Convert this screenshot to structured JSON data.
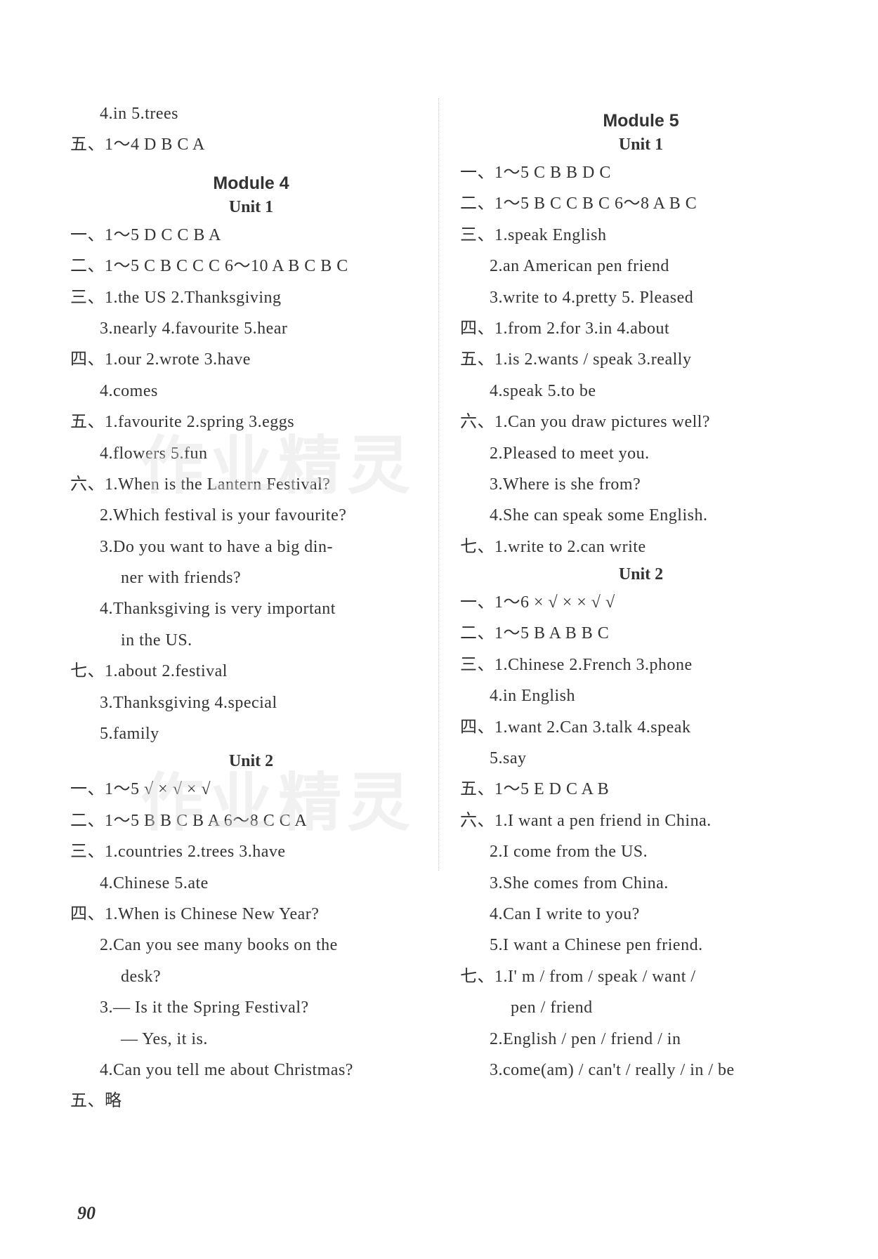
{
  "page_number": "90",
  "watermark_text": "作业精灵",
  "left_column": {
    "intro": [
      {
        "cls": "indent1",
        "text": "4.in  5.trees"
      },
      {
        "cls": "",
        "text": "五、1～4 D B C A"
      }
    ],
    "module_title": "Module 4",
    "unit1_title": "Unit 1",
    "unit1": [
      {
        "cls": "",
        "text": "一、1～5 D C C B A"
      },
      {
        "cls": "",
        "text": "二、1～5 C B C C C  6～10 A B C B C"
      },
      {
        "cls": "",
        "text": "三、1.the US  2.Thanksgiving"
      },
      {
        "cls": "indent1",
        "text": "3.nearly  4.favourite  5.hear"
      },
      {
        "cls": "",
        "text": "四、1.our  2.wrote  3.have"
      },
      {
        "cls": "indent1",
        "text": "4.comes"
      },
      {
        "cls": "",
        "text": "五、1.favourite  2.spring  3.eggs"
      },
      {
        "cls": "indent1",
        "text": "4.flowers  5.fun"
      },
      {
        "cls": "",
        "text": "六、1.When is the Lantern Festival?"
      },
      {
        "cls": "indent1",
        "text": "2.Which festival is your favourite?"
      },
      {
        "cls": "indent1",
        "text": "3.Do you want to have a big din-"
      },
      {
        "cls": "indent2",
        "text": "ner with friends?"
      },
      {
        "cls": "indent1",
        "text": "4.Thanksgiving is very important"
      },
      {
        "cls": "indent2",
        "text": "in the US."
      },
      {
        "cls": "",
        "text": "七、1.about  2.festival"
      },
      {
        "cls": "indent1",
        "text": "3.Thanksgiving  4.special"
      },
      {
        "cls": "indent1",
        "text": "5.family"
      }
    ],
    "unit2_title": "Unit 2",
    "unit2": [
      {
        "cls": "",
        "text": "一、1～5  √  ×  √  ×  √"
      },
      {
        "cls": "",
        "text": "二、1～5 B B C B A  6～8 C C A"
      },
      {
        "cls": "",
        "text": "三、1.countries  2.trees  3.have"
      },
      {
        "cls": "indent1",
        "text": "4.Chinese  5.ate"
      },
      {
        "cls": "",
        "text": "四、1.When is Chinese New Year?"
      },
      {
        "cls": "indent1",
        "text": "2.Can you see many books on the"
      },
      {
        "cls": "indent2",
        "text": "desk?"
      },
      {
        "cls": "indent1",
        "text": "3.— Is it the Spring Festival?"
      },
      {
        "cls": "indent2",
        "text": "— Yes, it is."
      },
      {
        "cls": "indent1",
        "text": "4.Can you tell me about Christmas?"
      },
      {
        "cls": "",
        "text": "五、略"
      }
    ]
  },
  "right_column": {
    "module_title": "Module 5",
    "unit1_title": "Unit 1",
    "unit1": [
      {
        "cls": "",
        "text": "一、1～5 C B B D C"
      },
      {
        "cls": "",
        "text": "二、1～5 B C C B C  6～8 A B C"
      },
      {
        "cls": "",
        "text": "三、1.speak English"
      },
      {
        "cls": "indent1",
        "text": "2.an American pen friend"
      },
      {
        "cls": "indent1",
        "text": "3.write to  4.pretty  5. Pleased"
      },
      {
        "cls": "",
        "text": "四、1.from  2.for  3.in  4.about"
      },
      {
        "cls": "",
        "text": "五、1.is  2.wants / speak  3.really"
      },
      {
        "cls": "indent1",
        "text": "4.speak  5.to be"
      },
      {
        "cls": "",
        "text": "六、1.Can you draw pictures well?"
      },
      {
        "cls": "indent1",
        "text": "2.Pleased to meet you."
      },
      {
        "cls": "indent1",
        "text": "3.Where is she from?"
      },
      {
        "cls": "indent1",
        "text": "4.She can speak some English."
      },
      {
        "cls": "",
        "text": "七、1.write to  2.can write"
      }
    ],
    "unit2_title": "Unit 2",
    "unit2": [
      {
        "cls": "",
        "text": "一、1～6 × √ × × √ √"
      },
      {
        "cls": "",
        "text": "二、1～5 B A B B C"
      },
      {
        "cls": "",
        "text": "三、1.Chinese  2.French  3.phone"
      },
      {
        "cls": "indent1",
        "text": "4.in English"
      },
      {
        "cls": "",
        "text": "四、1.want  2.Can  3.talk  4.speak"
      },
      {
        "cls": "indent1",
        "text": "5.say"
      },
      {
        "cls": "",
        "text": "五、1～5  E D C A B"
      },
      {
        "cls": "",
        "text": "六、1.I want a pen friend in China."
      },
      {
        "cls": "indent1",
        "text": "2.I come from the US."
      },
      {
        "cls": "indent1",
        "text": "3.She comes from China."
      },
      {
        "cls": "indent1",
        "text": "4.Can I write to you?"
      },
      {
        "cls": "indent1",
        "text": "5.I want a Chinese pen friend."
      },
      {
        "cls": "",
        "text": "七、1.I' m / from / speak / want /"
      },
      {
        "cls": "indent2",
        "text": "pen / friend"
      },
      {
        "cls": "indent1",
        "text": "2.English / pen / friend / in"
      },
      {
        "cls": "indent1",
        "text": "3.come(am) / can't / really / in / be"
      }
    ]
  }
}
